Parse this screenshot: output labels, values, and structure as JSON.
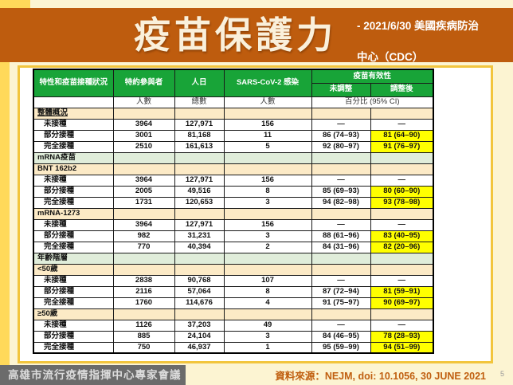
{
  "page": {
    "title": "疫苗保護力",
    "subtitle_line1": "- 2021/6/30 美國疾病防治",
    "subtitle_line2": "中心（CDC）"
  },
  "colors": {
    "band_orange": "#BE5C0E",
    "header_green": "#18A438",
    "section_cream": "#FCEAC6",
    "section_green": "#E0EDDA",
    "highlight_yellow": "#FFFF00",
    "frame_yellow": "#F2C53D",
    "footer_grey": "#6B6B6B",
    "source_orange": "#C05F10"
  },
  "table": {
    "headers": {
      "characteristics": "特性和疫苗接種狀況",
      "participants": "特約參與者",
      "person_days": "人日",
      "infection": "SARS-CoV-2 感染",
      "effectiveness": "疫苗有效性",
      "unadjusted": "未調整",
      "adjusted": "調整後",
      "participants_sub": "人數",
      "person_days_sub": "總數",
      "infection_sub": "人數",
      "effectiveness_sub": "百分比 (95% CI)"
    },
    "rows": [
      {
        "type": "section",
        "variant": "cream",
        "underline": true,
        "label": "整體概況"
      },
      {
        "type": "data",
        "label": "未接種",
        "participants": "3964",
        "person_days": "127,971",
        "infections": "156",
        "unadjusted": "—",
        "adjusted": "—",
        "highlight": false
      },
      {
        "type": "data",
        "label": "部分接種",
        "participants": "3001",
        "person_days": "81,168",
        "infections": "11",
        "unadjusted": "86 (74–93)",
        "adjusted": "81 (64–90)",
        "highlight": true
      },
      {
        "type": "data",
        "label": "完全接種",
        "participants": "2510",
        "person_days": "161,613",
        "infections": "5",
        "unadjusted": "92 (80–97)",
        "adjusted": "91 (76–97)",
        "highlight": true
      },
      {
        "type": "section",
        "variant": "green",
        "label": "mRNA疫苗"
      },
      {
        "type": "section",
        "variant": "cream",
        "label": "BNT 162b2"
      },
      {
        "type": "data",
        "label": "未接種",
        "participants": "3964",
        "person_days": "127,971",
        "infections": "156",
        "unadjusted": "—",
        "adjusted": "—",
        "highlight": false
      },
      {
        "type": "data",
        "label": "部分接種",
        "participants": "2005",
        "person_days": "49,516",
        "infections": "8",
        "unadjusted": "85 (69–93)",
        "adjusted": "80 (60–90)",
        "highlight": true
      },
      {
        "type": "data",
        "label": "完全接種",
        "participants": "1731",
        "person_days": "120,653",
        "infections": "3",
        "unadjusted": "94 (82–98)",
        "adjusted": "93 (78–98)",
        "highlight": true
      },
      {
        "type": "section",
        "variant": "cream",
        "label": "mRNA-1273"
      },
      {
        "type": "data",
        "label": "未接種",
        "participants": "3964",
        "person_days": "127,971",
        "infections": "156",
        "unadjusted": "—",
        "adjusted": "—",
        "highlight": false
      },
      {
        "type": "data",
        "label": "部分接種",
        "participants": "982",
        "person_days": "31,231",
        "infections": "3",
        "unadjusted": "88 (61–96)",
        "adjusted": "83 (40–95)",
        "highlight": true
      },
      {
        "type": "data",
        "label": "完全接種",
        "participants": "770",
        "person_days": "40,394",
        "infections": "2",
        "unadjusted": "84 (31–96)",
        "adjusted": "82 (20–96)",
        "highlight": true
      },
      {
        "type": "section",
        "variant": "green",
        "label": "年齡階層"
      },
      {
        "type": "section",
        "variant": "cream",
        "label": "<50歲"
      },
      {
        "type": "data",
        "label": "未接種",
        "participants": "2838",
        "person_days": "90,768",
        "infections": "107",
        "unadjusted": "—",
        "adjusted": "—",
        "highlight": false
      },
      {
        "type": "data",
        "label": "部分接種",
        "participants": "2116",
        "person_days": "57,064",
        "infections": "8",
        "unadjusted": "87 (72–94)",
        "adjusted": "81 (59–91)",
        "highlight": true
      },
      {
        "type": "data",
        "label": "完全接種",
        "participants": "1760",
        "person_days": "114,676",
        "infections": "4",
        "unadjusted": "91 (75–97)",
        "adjusted": "90 (69–97)",
        "highlight": true
      },
      {
        "type": "section",
        "variant": "cream",
        "label": "≥50歲"
      },
      {
        "type": "data",
        "label": "未接種",
        "participants": "1126",
        "person_days": "37,203",
        "infections": "49",
        "unadjusted": "—",
        "adjusted": "—",
        "highlight": false
      },
      {
        "type": "data",
        "label": "部分接種",
        "participants": "885",
        "person_days": "24,104",
        "infections": "3",
        "unadjusted": "84 (46–95)",
        "adjusted": "78 (28–93)",
        "highlight": true
      },
      {
        "type": "data",
        "label": "完全接種",
        "participants": "750",
        "person_days": "46,937",
        "infections": "1",
        "unadjusted": "95 (59–99)",
        "adjusted": "94 (51–99)",
        "highlight": true
      }
    ]
  },
  "footer": {
    "committee": "高雄市流行疫情指揮中心專家會議",
    "source": "資料來源：NEJM, doi: 10.1056, 30 JUNE 2021",
    "page_number": "5"
  }
}
